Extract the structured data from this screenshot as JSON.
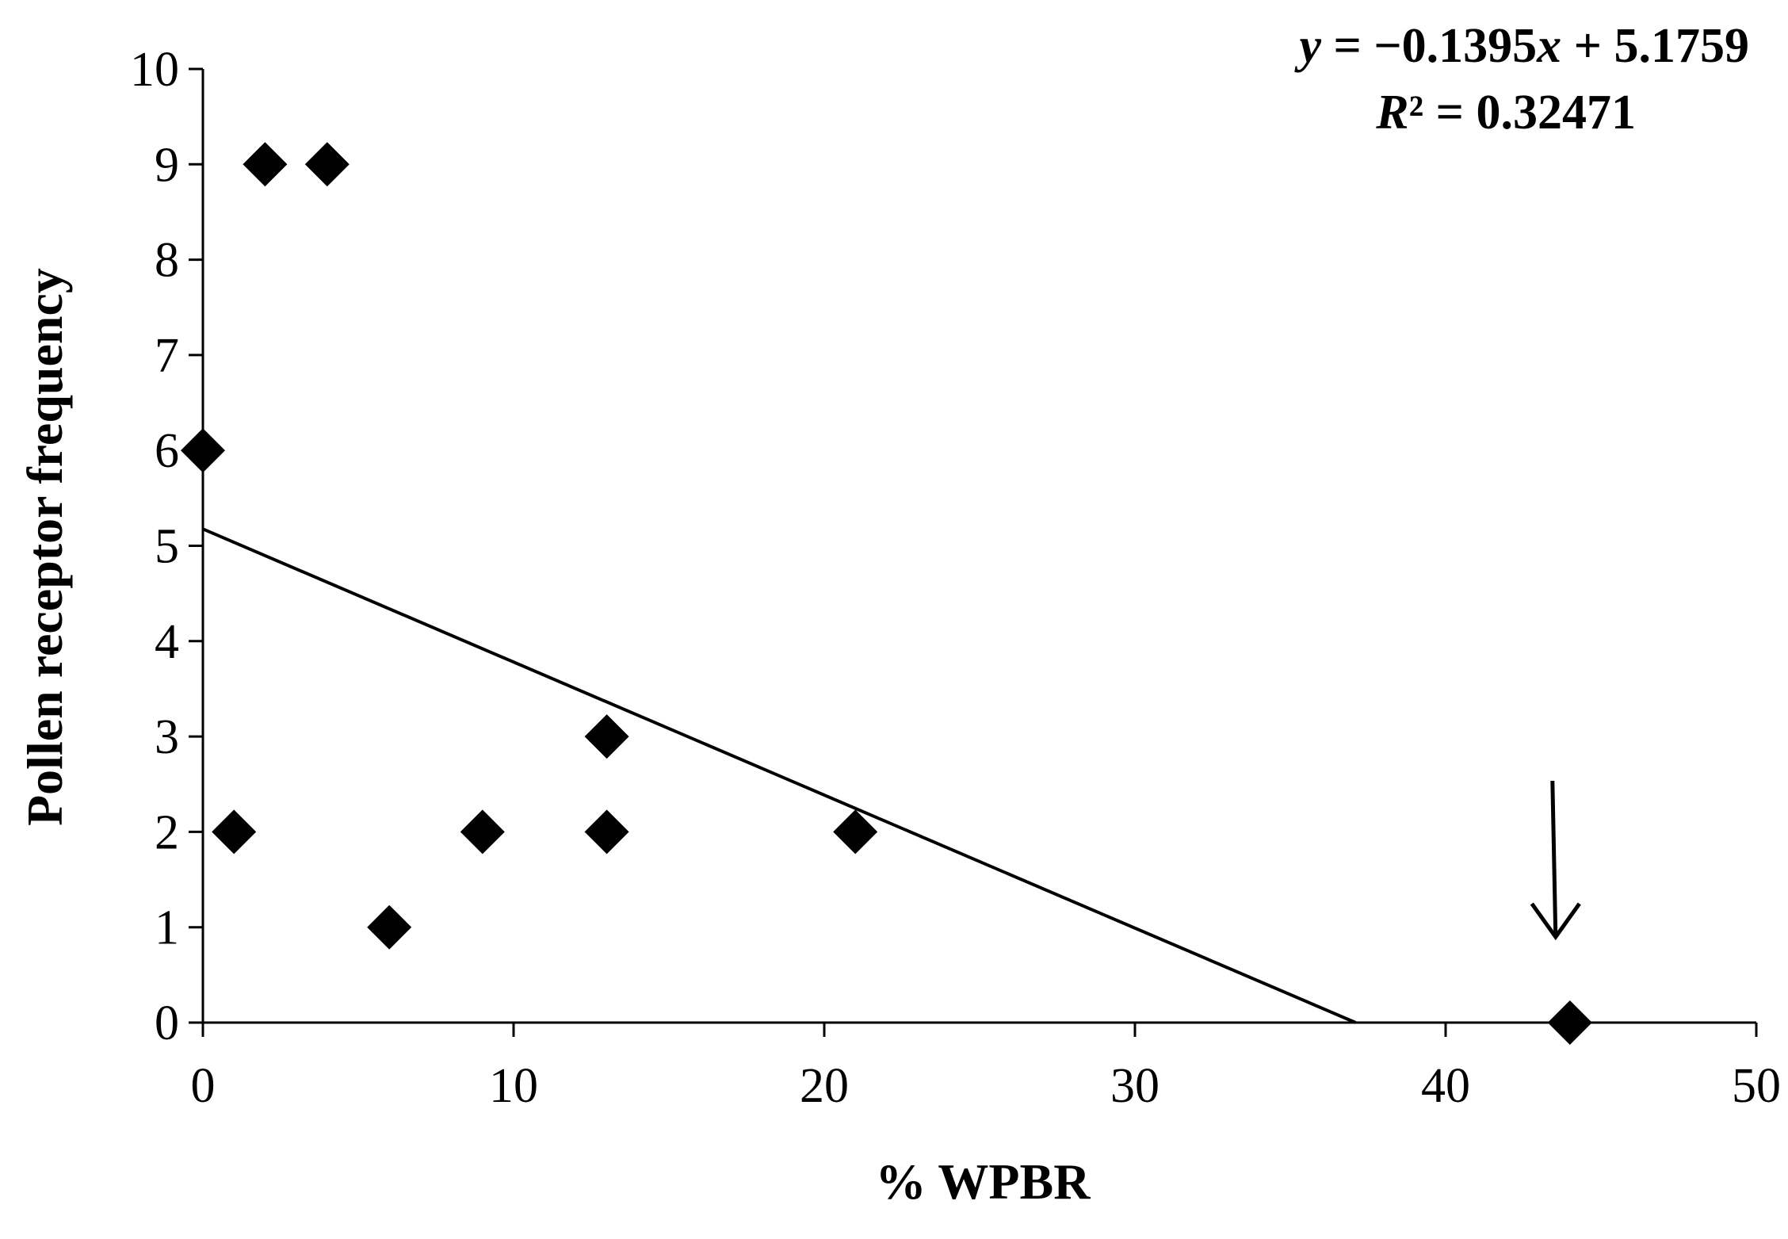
{
  "chart_data": {
    "type": "scatter",
    "title": "",
    "xlabel": "% WPBR",
    "ylabel": "Pollen receptor frequency",
    "xlim": [
      0,
      50
    ],
    "ylim": [
      0,
      10
    ],
    "x_ticks": [
      0,
      10,
      20,
      30,
      40,
      50
    ],
    "y_ticks": [
      0,
      1,
      2,
      3,
      4,
      5,
      6,
      7,
      8,
      9,
      10
    ],
    "grid": false,
    "legend": "none",
    "marker": "diamond",
    "marker_color": "#000000",
    "series": [
      {
        "points": [
          {
            "x": 0,
            "y": 6
          },
          {
            "x": 1,
            "y": 2
          },
          {
            "x": 2,
            "y": 9
          },
          {
            "x": 4,
            "y": 9
          },
          {
            "x": 6,
            "y": 1
          },
          {
            "x": 9,
            "y": 2
          },
          {
            "x": 13,
            "y": 3
          },
          {
            "x": 13,
            "y": 2
          },
          {
            "x": 21,
            "y": 2
          },
          {
            "x": 44,
            "y": 0
          }
        ]
      }
    ],
    "trendline": {
      "type": "linear",
      "slope": -0.1395,
      "intercept": 5.1759,
      "equation_prefix": "y",
      "equation_mid": " = −0.1395",
      "equation_var": "x",
      "equation_suffix": " + 5.1759",
      "r2_label": "R",
      "r2_value": "² = 0.32471"
    },
    "annotations": [
      {
        "type": "arrow",
        "points_to": {
          "x": 44,
          "y": 0
        }
      }
    ]
  }
}
